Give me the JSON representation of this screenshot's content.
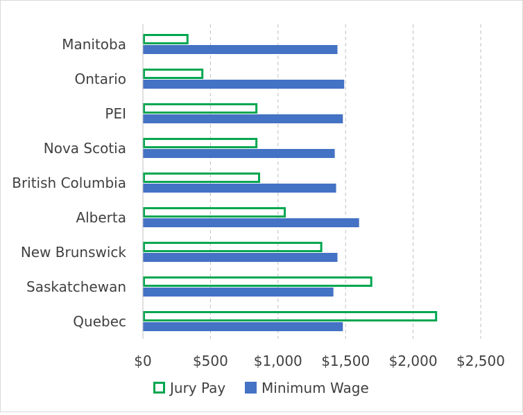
{
  "chart_data": {
    "type": "bar",
    "orientation": "horizontal",
    "categories": [
      "Manitoba",
      "Ontario",
      "PEI",
      "Nova Scotia",
      "British Columbia",
      "Alberta",
      "New Brunswick",
      "Saskatchewan",
      "Quebec"
    ],
    "series": [
      {
        "name": "Jury Pay",
        "values": [
          330,
          440,
          840,
          840,
          860,
          1050,
          1320,
          1690,
          2170
        ],
        "color": "#00a650",
        "style": "outline"
      },
      {
        "name": "Minimum Wage",
        "values": [
          1440,
          1490,
          1480,
          1420,
          1430,
          1600,
          1440,
          1410,
          1480
        ],
        "color": "#4472c4",
        "style": "filled"
      }
    ],
    "xlim": [
      0,
      2500
    ],
    "xticks": [
      0,
      500,
      1000,
      1500,
      2000,
      2500
    ],
    "xtick_labels": [
      "$0",
      "$500",
      "$1,000",
      "$1,500",
      "$2,000",
      "$2,500"
    ],
    "grid": "vertical dashed",
    "legend_position": "bottom",
    "title": "",
    "xlabel": "",
    "ylabel": ""
  }
}
